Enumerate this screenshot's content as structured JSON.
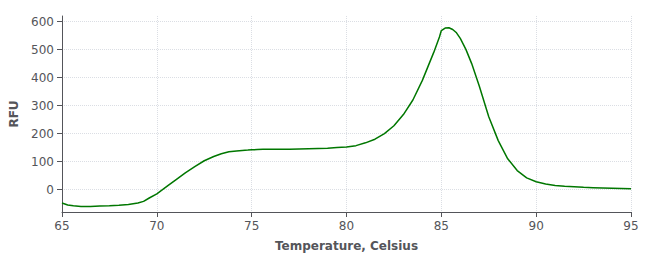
{
  "chart_data": {
    "type": "line",
    "xlabel": "Temperature, Celsius",
    "ylabel": "RFU",
    "x": [
      65.0,
      65.3,
      65.6,
      66.0,
      66.5,
      67.0,
      67.5,
      68.0,
      68.5,
      69.0,
      69.3,
      69.6,
      70.0,
      70.3,
      70.6,
      71.0,
      71.5,
      72.0,
      72.5,
      73.0,
      73.4,
      73.8,
      74.2,
      74.5,
      74.8,
      75.0,
      75.3,
      75.6,
      76.0,
      76.5,
      77.0,
      77.5,
      78.0,
      78.5,
      79.0,
      79.5,
      80.0,
      80.5,
      81.0,
      81.5,
      82.0,
      82.5,
      83.0,
      83.5,
      84.0,
      84.3,
      84.6,
      84.9,
      85.0,
      85.2,
      85.4,
      85.6,
      85.8,
      86.0,
      86.3,
      86.6,
      87.0,
      87.5,
      88.0,
      88.5,
      89.0,
      89.5,
      90.0,
      90.5,
      91.0,
      91.5,
      92.0,
      92.5,
      93.0,
      93.5,
      94.0,
      94.5,
      95.0
    ],
    "values": [
      -48,
      -55,
      -58,
      -60,
      -60,
      -59,
      -58,
      -56,
      -53,
      -48,
      -42,
      -30,
      -15,
      0,
      15,
      35,
      60,
      82,
      103,
      118,
      128,
      135,
      138,
      140,
      141,
      142,
      143,
      144,
      144,
      144,
      144,
      145,
      146,
      147,
      148,
      150,
      152,
      157,
      167,
      180,
      200,
      228,
      268,
      320,
      390,
      440,
      490,
      545,
      568,
      577,
      578,
      572,
      560,
      540,
      500,
      450,
      370,
      260,
      175,
      110,
      68,
      42,
      28,
      20,
      15,
      12,
      10,
      8,
      7,
      6,
      5,
      4,
      3
    ],
    "color": "#007700",
    "xlim": [
      65,
      95
    ],
    "ylim": [
      -80,
      620
    ],
    "xticks": [
      65,
      70,
      75,
      80,
      85,
      90,
      95
    ],
    "yticks": [
      0,
      100,
      200,
      300,
      400,
      500,
      600
    ],
    "grid": true
  }
}
